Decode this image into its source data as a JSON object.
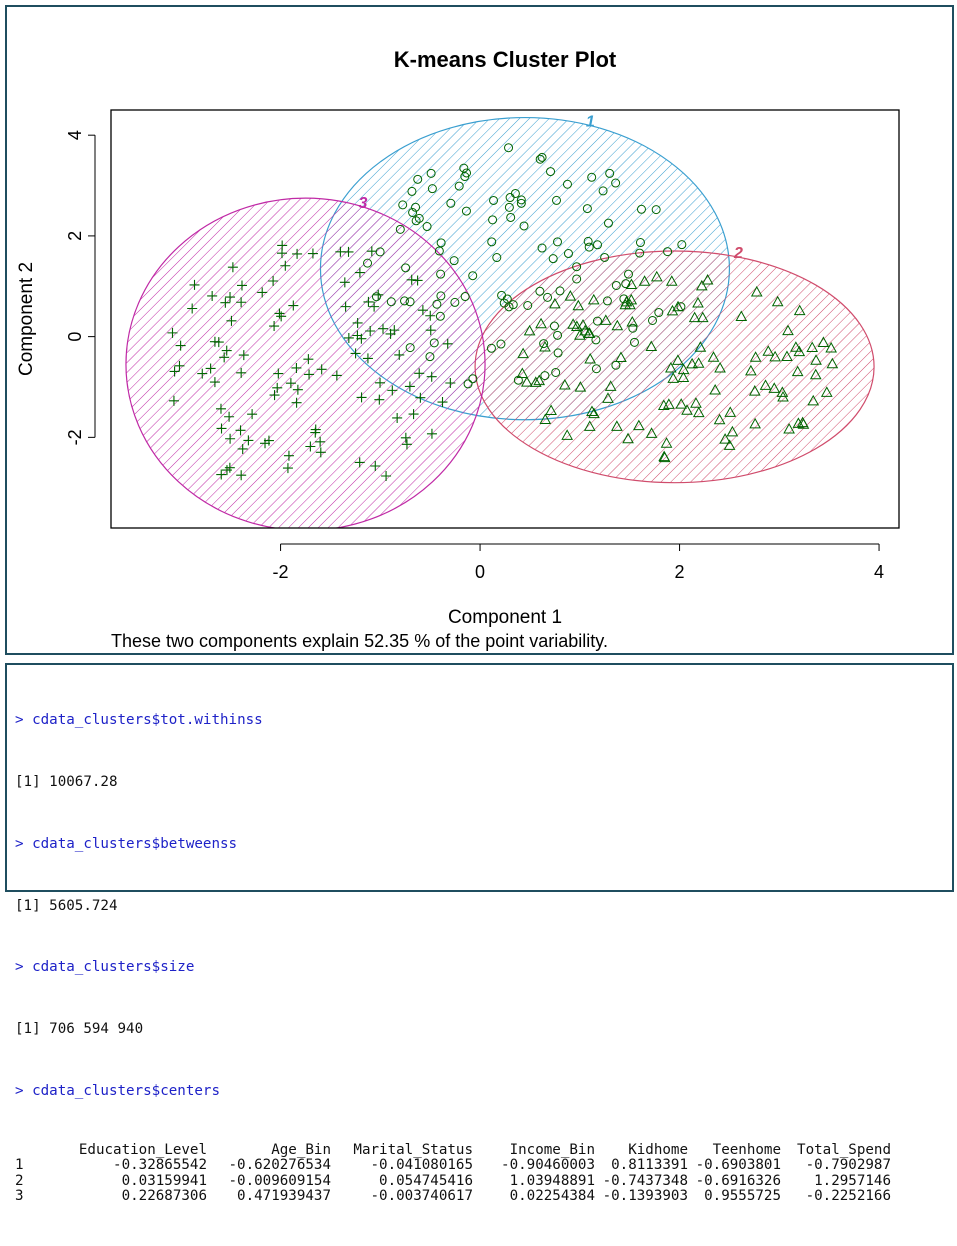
{
  "chart_data": {
    "type": "scatter",
    "title": "K-means Cluster Plot",
    "xlabel": "Component 1",
    "ylabel": "Component 2",
    "subtitle": "These two components explain 52.35 % of the point variability.",
    "xlim": [
      -3.7,
      4.2
    ],
    "ylim": [
      -3.8,
      4.5
    ],
    "x_ticks": [
      -2,
      0,
      2,
      4
    ],
    "y_ticks": [
      -2,
      0,
      2,
      4
    ],
    "x_tick_labels": [
      "-2",
      "0",
      "2",
      "4"
    ],
    "y_tick_labels": [
      "-2",
      "0",
      "2",
      "4"
    ],
    "grid": false,
    "legend": "none",
    "point_color": "#006400",
    "clusters": [
      {
        "label": "1",
        "marker": "circle",
        "color": "#3a9fd0",
        "center": [
          0.45,
          1.35
        ],
        "radius_x": 2.05,
        "radius_y": 3.0,
        "seed": 11
      },
      {
        "label": "2",
        "marker": "triangle",
        "color": "#d04c6c",
        "center": [
          1.95,
          -0.6
        ],
        "radius_x": 2.0,
        "radius_y": 2.3,
        "seed": 29
      },
      {
        "label": "3",
        "marker": "plus",
        "color": "#c02aa6",
        "center": [
          -1.75,
          -0.55
        ],
        "radius_x": 1.8,
        "radius_y": 3.3,
        "seed": 47
      }
    ]
  },
  "console": {
    "cmd_withinss": "> cdata_clusters$tot.withinss",
    "out_withinss": "[1] 10067.28",
    "cmd_betweenss": "> cdata_clusters$betweenss",
    "out_betweenss": "[1] 5605.724",
    "cmd_size": "> cdata_clusters$size",
    "out_size": "[1] 706 594 940",
    "cmd_centers": "> cdata_clusters$centers",
    "centers_header": [
      "",
      "Education_Level",
      "Age_Bin",
      "Marital_Status",
      "Income_Bin",
      "Kidhome",
      "Teenhome",
      "Total_Spend"
    ],
    "centers_rows": [
      [
        "1",
        "-0.32865542",
        "-0.620276534",
        "-0.041080165",
        "-0.90460003",
        "0.8113391",
        "-0.6903801",
        "-0.7902987"
      ],
      [
        "2",
        "0.03159941",
        "-0.009609154",
        "0.054745416",
        "1.03948891",
        "-0.7437348",
        "-0.6916326",
        "1.2957146"
      ],
      [
        "3",
        "0.22687306",
        "0.471939437",
        "-0.003740617",
        "0.02254384",
        "-0.1393903",
        "0.9555725",
        "-0.2252166"
      ]
    ]
  }
}
